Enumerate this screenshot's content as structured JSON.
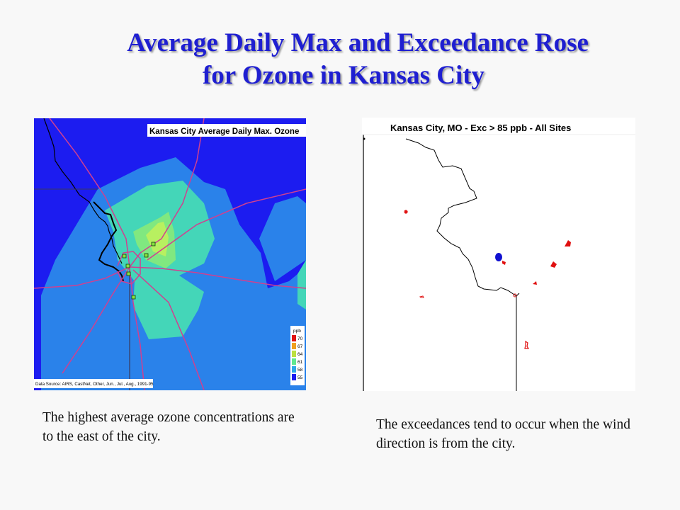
{
  "slide": {
    "title_line1": "Average Daily Max and Exceedance Rose",
    "title_line2": "for Ozone in Kansas City"
  },
  "left_map": {
    "title": "Kansas City Average Daily Max. Ozone",
    "source": "Data Source: AIRS, CastNet, Other, Jun., Jul., Aug., 1991-95",
    "legend": {
      "unit": "ppb",
      "entries": [
        {
          "label": "70",
          "color": "#e01414"
        },
        {
          "label": "67",
          "color": "#f0a020"
        },
        {
          "label": "64",
          "color": "#bce040"
        },
        {
          "label": "61",
          "color": "#60e890"
        },
        {
          "label": "58",
          "color": "#2ea8e8"
        },
        {
          "label": "55",
          "color": "#1c1cf0"
        }
      ]
    },
    "colors": {
      "c55": "#1c1cf0",
      "c58": "#2a82ea",
      "c61": "#44d6b8",
      "c64": "#80e880",
      "c67": "#b8f060",
      "highway": "#d04090",
      "river": "#000000"
    }
  },
  "right_map": {
    "title": "Kansas City, MO - Exc > 85 ppb - All Sites",
    "site_color": "#e01010",
    "city_color": "#1010d0"
  },
  "captions": {
    "left": "The highest average ozone concentrations are to the east of the city.",
    "right": "The exceedances tend to occur when the wind direction is from the city."
  }
}
